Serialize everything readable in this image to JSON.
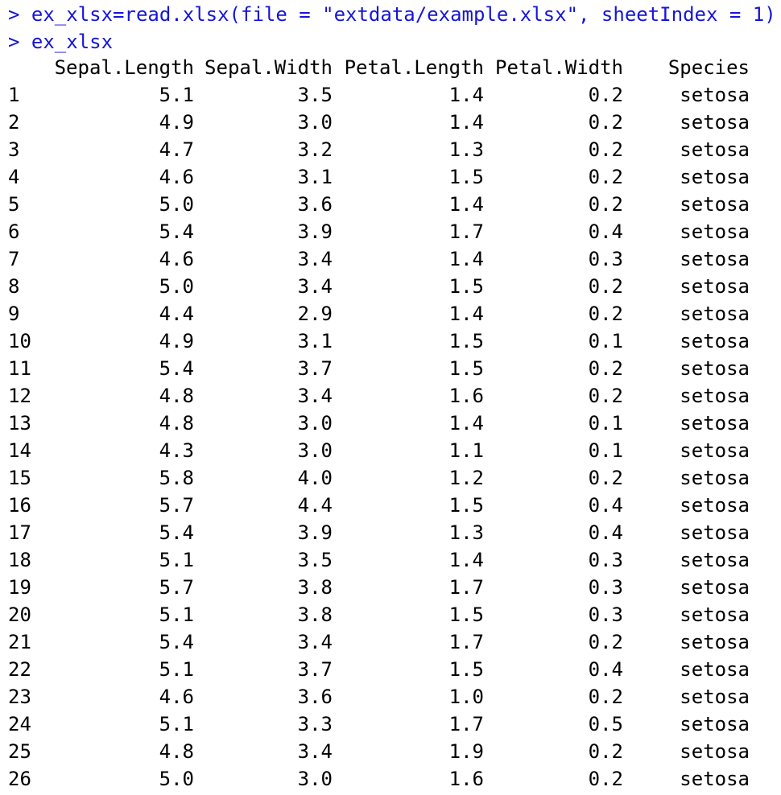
{
  "console": {
    "prompt": ">",
    "commands": [
      "ex_xlsx=read.xlsx(file = \"extdata/example.xlsx\", sheetIndex = 1)",
      "ex_xlsx"
    ],
    "command_color": "#1515d8"
  },
  "table": {
    "columns": [
      "Sepal.Length",
      "Sepal.Width",
      "Petal.Length",
      "Petal.Width",
      "Species"
    ],
    "rows": [
      {
        "id": "1",
        "cells": [
          "5.1",
          "3.5",
          "1.4",
          "0.2",
          "setosa"
        ]
      },
      {
        "id": "2",
        "cells": [
          "4.9",
          "3.0",
          "1.4",
          "0.2",
          "setosa"
        ]
      },
      {
        "id": "3",
        "cells": [
          "4.7",
          "3.2",
          "1.3",
          "0.2",
          "setosa"
        ]
      },
      {
        "id": "4",
        "cells": [
          "4.6",
          "3.1",
          "1.5",
          "0.2",
          "setosa"
        ]
      },
      {
        "id": "5",
        "cells": [
          "5.0",
          "3.6",
          "1.4",
          "0.2",
          "setosa"
        ]
      },
      {
        "id": "6",
        "cells": [
          "5.4",
          "3.9",
          "1.7",
          "0.4",
          "setosa"
        ]
      },
      {
        "id": "7",
        "cells": [
          "4.6",
          "3.4",
          "1.4",
          "0.3",
          "setosa"
        ]
      },
      {
        "id": "8",
        "cells": [
          "5.0",
          "3.4",
          "1.5",
          "0.2",
          "setosa"
        ]
      },
      {
        "id": "9",
        "cells": [
          "4.4",
          "2.9",
          "1.4",
          "0.2",
          "setosa"
        ]
      },
      {
        "id": "10",
        "cells": [
          "4.9",
          "3.1",
          "1.5",
          "0.1",
          "setosa"
        ]
      },
      {
        "id": "11",
        "cells": [
          "5.4",
          "3.7",
          "1.5",
          "0.2",
          "setosa"
        ]
      },
      {
        "id": "12",
        "cells": [
          "4.8",
          "3.4",
          "1.6",
          "0.2",
          "setosa"
        ]
      },
      {
        "id": "13",
        "cells": [
          "4.8",
          "3.0",
          "1.4",
          "0.1",
          "setosa"
        ]
      },
      {
        "id": "14",
        "cells": [
          "4.3",
          "3.0",
          "1.1",
          "0.1",
          "setosa"
        ]
      },
      {
        "id": "15",
        "cells": [
          "5.8",
          "4.0",
          "1.2",
          "0.2",
          "setosa"
        ]
      },
      {
        "id": "16",
        "cells": [
          "5.7",
          "4.4",
          "1.5",
          "0.4",
          "setosa"
        ]
      },
      {
        "id": "17",
        "cells": [
          "5.4",
          "3.9",
          "1.3",
          "0.4",
          "setosa"
        ]
      },
      {
        "id": "18",
        "cells": [
          "5.1",
          "3.5",
          "1.4",
          "0.3",
          "setosa"
        ]
      },
      {
        "id": "19",
        "cells": [
          "5.7",
          "3.8",
          "1.7",
          "0.3",
          "setosa"
        ]
      },
      {
        "id": "20",
        "cells": [
          "5.1",
          "3.8",
          "1.5",
          "0.3",
          "setosa"
        ]
      },
      {
        "id": "21",
        "cells": [
          "5.4",
          "3.4",
          "1.7",
          "0.2",
          "setosa"
        ]
      },
      {
        "id": "22",
        "cells": [
          "5.1",
          "3.7",
          "1.5",
          "0.4",
          "setosa"
        ]
      },
      {
        "id": "23",
        "cells": [
          "4.6",
          "3.6",
          "1.0",
          "0.2",
          "setosa"
        ]
      },
      {
        "id": "24",
        "cells": [
          "5.1",
          "3.3",
          "1.7",
          "0.5",
          "setosa"
        ]
      },
      {
        "id": "25",
        "cells": [
          "4.8",
          "3.4",
          "1.9",
          "0.2",
          "setosa"
        ]
      },
      {
        "id": "26",
        "cells": [
          "5.0",
          "3.0",
          "1.6",
          "0.2",
          "setosa"
        ]
      }
    ]
  }
}
